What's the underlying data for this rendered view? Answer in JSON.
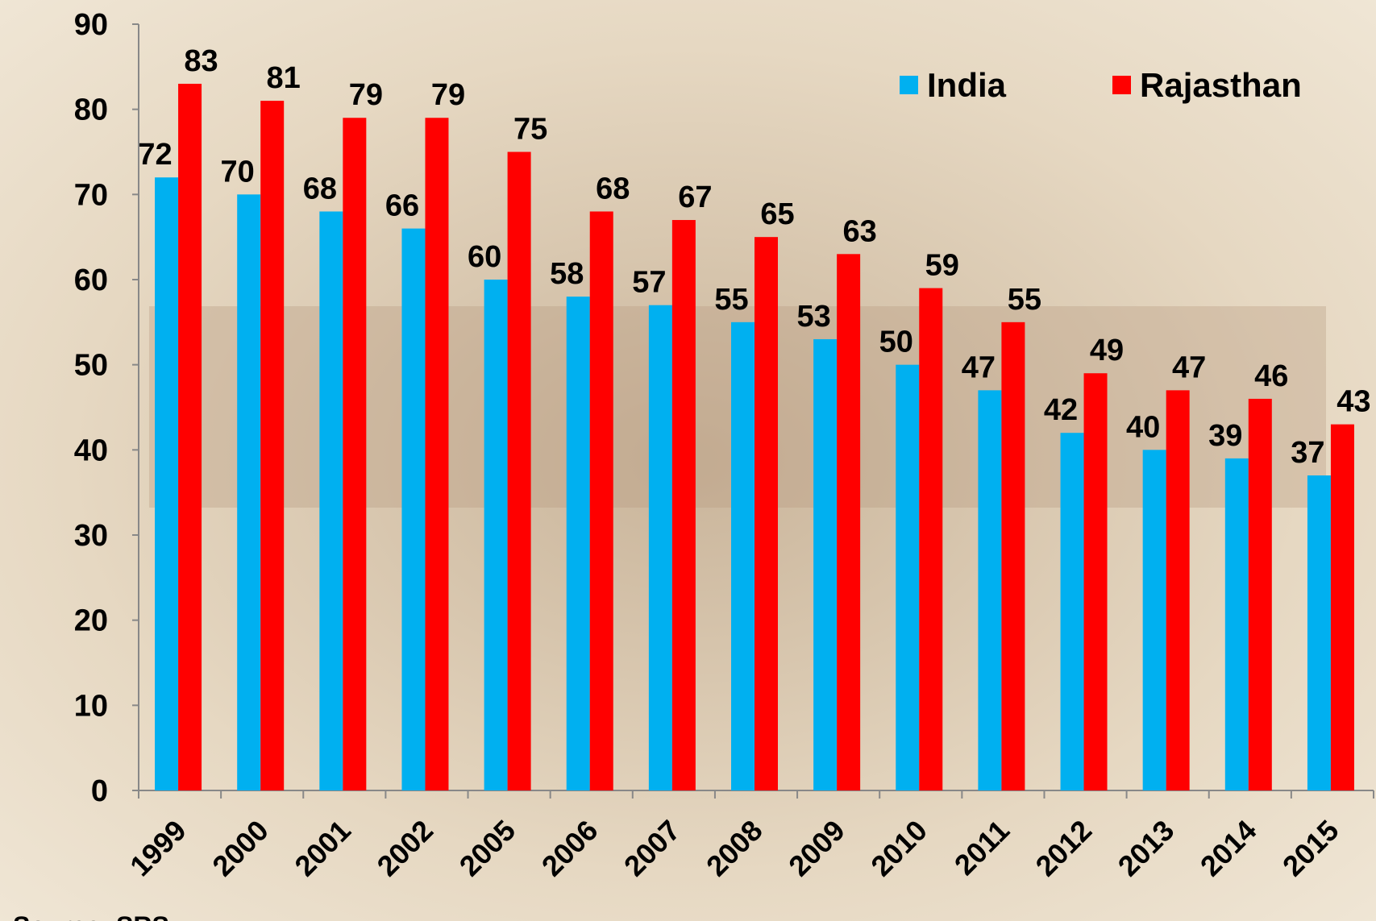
{
  "chart_data": {
    "type": "bar",
    "categories": [
      "1999",
      "2000",
      "2001",
      "2002",
      "2005",
      "2006",
      "2007",
      "2008",
      "2009",
      "2010",
      "2011",
      "2012",
      "2013",
      "2014",
      "2015"
    ],
    "series": [
      {
        "name": "India",
        "color": "#00b0f0",
        "values": [
          72,
          70,
          68,
          66,
          60,
          58,
          57,
          55,
          53,
          50,
          47,
          42,
          40,
          39,
          37
        ]
      },
      {
        "name": "Rajasthan",
        "color": "#ff0000",
        "values": [
          83,
          81,
          79,
          79,
          75,
          68,
          67,
          65,
          63,
          59,
          55,
          49,
          47,
          46,
          43
        ]
      }
    ],
    "ylim": [
      0,
      90
    ],
    "yticks": [
      0,
      10,
      20,
      30,
      40,
      50,
      60,
      70,
      80,
      90
    ],
    "legend": "top-right",
    "source": "Source: SRS"
  }
}
